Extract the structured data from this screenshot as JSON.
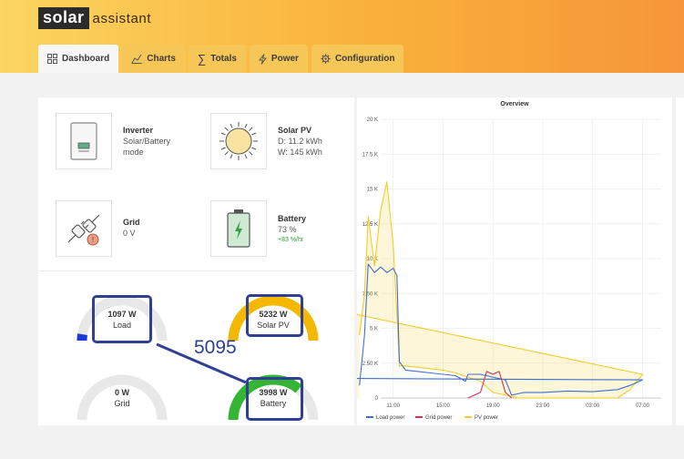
{
  "app": {
    "logo_main": "solar",
    "logo_sub": "assistant"
  },
  "tabs": [
    {
      "label": "Dashboard",
      "icon": "grid-icon",
      "active": true
    },
    {
      "label": "Charts",
      "icon": "bar-chart-icon"
    },
    {
      "label": "Totals",
      "icon": "sigma-icon"
    },
    {
      "label": "Power",
      "icon": "lightning-icon"
    },
    {
      "label": "Configuration",
      "icon": "gear-icon"
    }
  ],
  "cards": {
    "inverter": {
      "title": "Inverter",
      "line1": "Solar/Battery",
      "line2": "mode"
    },
    "solar": {
      "title": "Solar PV",
      "line1": "D: 11.2 kWh",
      "line2": "W: 145 kWh"
    },
    "grid": {
      "title": "Grid",
      "line1": "0 V"
    },
    "battery": {
      "title": "Battery",
      "line1": "73 %",
      "line2": "+83 %/hr"
    }
  },
  "gauges": {
    "load": {
      "value": "1097 W",
      "label": "Load",
      "fraction": 0.05,
      "color": "#1a3ad6"
    },
    "solar": {
      "value": "5232 W",
      "label": "Solar PV",
      "fraction": 1.0,
      "color": "#f5b800"
    },
    "grid": {
      "value": "0 W",
      "label": "Grid",
      "fraction": 0.0,
      "color": "#1a3ad6"
    },
    "battery": {
      "value": "3998 W",
      "label": "Battery",
      "fraction": 0.72,
      "color": "#34b534"
    }
  },
  "annotation": {
    "number": "5095"
  },
  "chart_data": {
    "type": "line",
    "title": "Overview",
    "x_ticks": [
      "11:00",
      "15:00",
      "19:00",
      "23:00",
      "03:00",
      "07:00"
    ],
    "y_ticks": [
      "0",
      "2.50 K",
      "5 K",
      "7.50 K",
      "10 K",
      "12.5 K",
      "15 K",
      "17.5 K",
      "20 K"
    ],
    "ylim": [
      0,
      20000
    ],
    "legend_placement": "bottom-left",
    "series": [
      {
        "name": "Load power",
        "color": "#3d6fd1",
        "points": [
          [
            8.3,
            900
          ],
          [
            8.7,
            4500
          ],
          [
            9,
            9600
          ],
          [
            9.5,
            9000
          ],
          [
            10,
            9400
          ],
          [
            10.5,
            9000
          ],
          [
            11,
            9300
          ],
          [
            11.3,
            8800
          ],
          [
            11.5,
            2600
          ],
          [
            12,
            2000
          ],
          [
            13,
            1900
          ],
          [
            14,
            1800
          ],
          [
            15,
            1700
          ],
          [
            16,
            1600
          ],
          [
            16.8,
            1200
          ],
          [
            17,
            1700
          ],
          [
            18,
            1700
          ],
          [
            19,
            1500
          ],
          [
            20,
            1300
          ],
          [
            20.5,
            200
          ],
          [
            21.5,
            400
          ],
          [
            23,
            400
          ],
          [
            1,
            500
          ],
          [
            3,
            450
          ],
          [
            5,
            600
          ],
          [
            6,
            900
          ],
          [
            7,
            1300
          ],
          [
            8,
            1400
          ]
        ]
      },
      {
        "name": "Grid power",
        "color": "#d2325a",
        "points": [
          [
            17,
            0
          ],
          [
            18,
            400
          ],
          [
            18.5,
            1900
          ],
          [
            19,
            1700
          ],
          [
            19.5,
            1900
          ],
          [
            20,
            400
          ],
          [
            20.5,
            0
          ]
        ]
      },
      {
        "name": "PV power",
        "color": "#f3cc2a",
        "points": [
          [
            8.3,
            4500
          ],
          [
            8.7,
            7500
          ],
          [
            9,
            13000
          ],
          [
            9.5,
            9500
          ],
          [
            10,
            13500
          ],
          [
            10.5,
            15500
          ],
          [
            11,
            11000
          ],
          [
            11.3,
            6000
          ],
          [
            11.5,
            2300
          ],
          [
            12,
            2300
          ],
          [
            13,
            2200
          ],
          [
            14,
            2100
          ],
          [
            15,
            2000
          ],
          [
            16,
            1800
          ],
          [
            17,
            1500
          ],
          [
            18,
            1200
          ],
          [
            19,
            400
          ],
          [
            20,
            200
          ],
          [
            21,
            0
          ],
          [
            5,
            0
          ],
          [
            6,
            600
          ],
          [
            7,
            1700
          ],
          [
            8,
            6000
          ]
        ]
      }
    ]
  }
}
